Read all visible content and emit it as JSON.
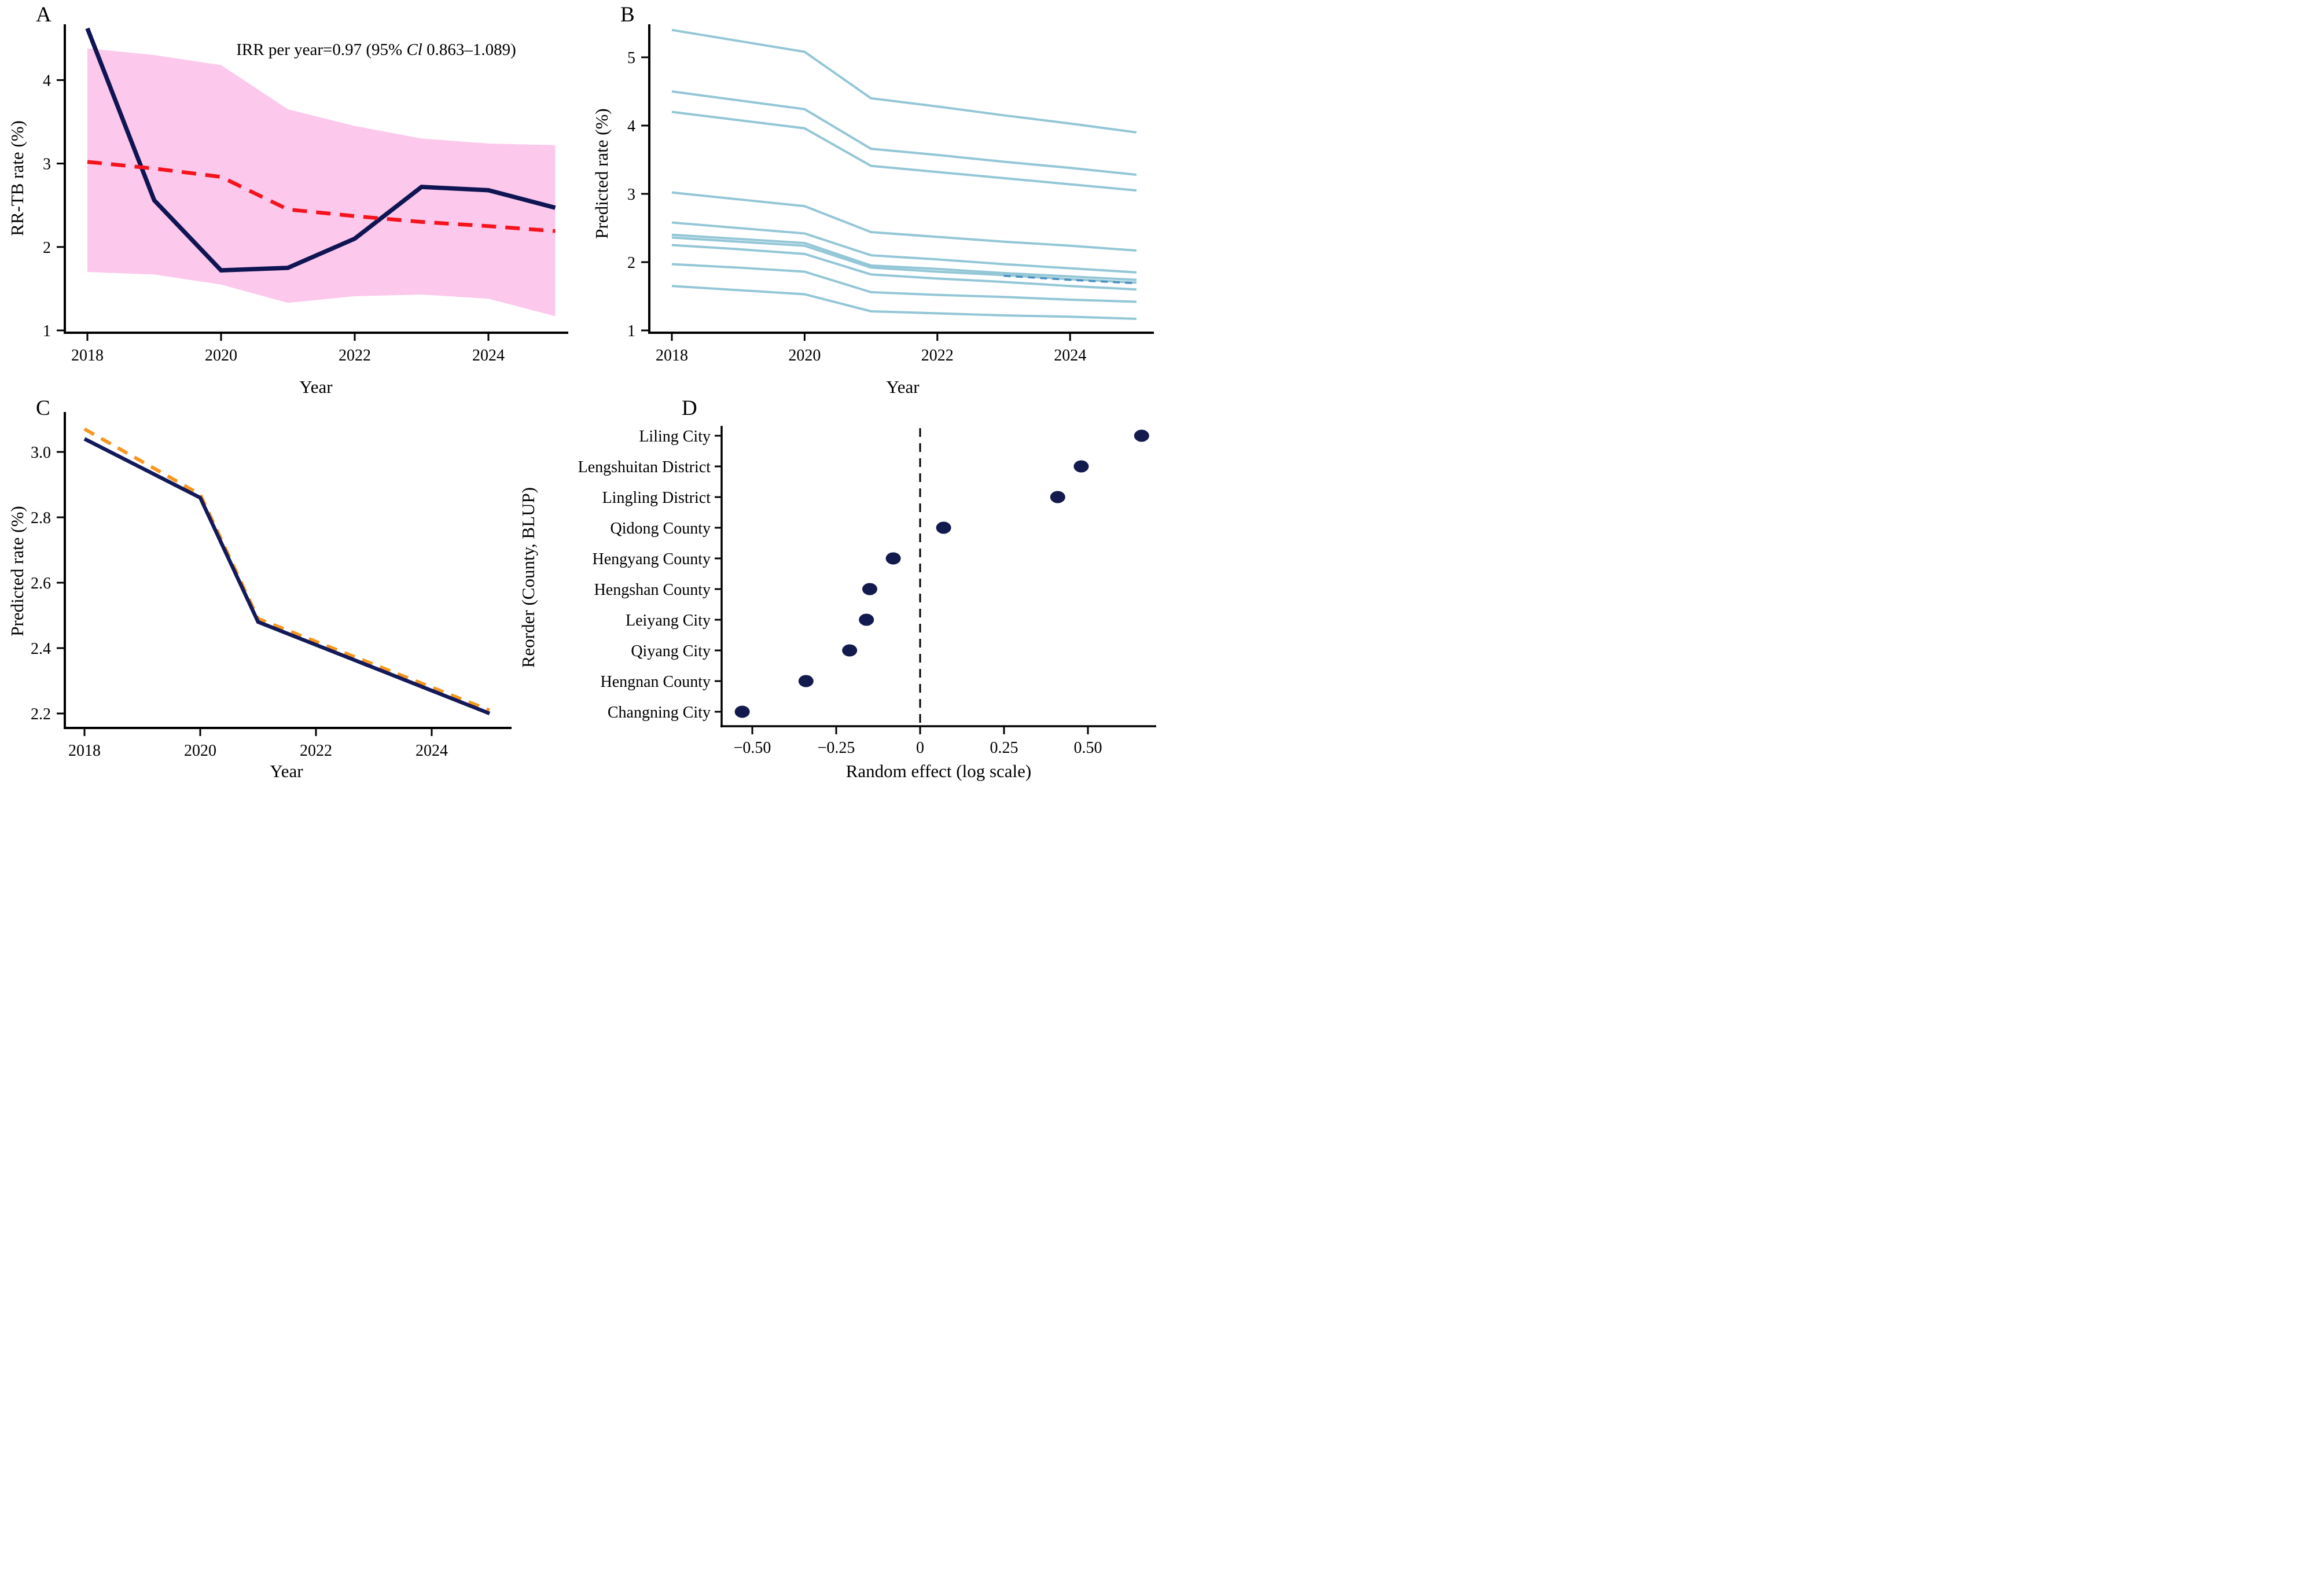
{
  "chart_data": [
    {
      "panel": "A",
      "type": "line",
      "title": "",
      "xlabel": "Year",
      "ylabel": "RR-TB rate (%)",
      "annotation": {
        "prefix": "IRR per year=0.97 (95% ",
        "italic": "Cl",
        "suffix": " 0.863–1.089)"
      },
      "x": [
        2018,
        2019,
        2020,
        2021,
        2022,
        2023,
        2024,
        2025
      ],
      "xticks": [
        2018,
        2020,
        2022,
        2024
      ],
      "xtick_labels": [
        "2018",
        "2020",
        "2022",
        "2024"
      ],
      "yticks": [
        1,
        2,
        3,
        4
      ],
      "ytick_labels": [
        "1",
        "2",
        "3",
        "4"
      ],
      "xlim": [
        2018,
        2025
      ],
      "ylim": [
        1,
        4.8
      ],
      "grid": false,
      "legend": "none",
      "band": {
        "name": "95% confidence band",
        "color": "#fcc8ec",
        "upper": [
          4.38,
          4.3,
          4.18,
          3.65,
          3.45,
          3.3,
          3.24,
          3.22
        ],
        "lower": [
          1.7,
          1.67,
          1.55,
          1.33,
          1.41,
          1.43,
          1.38,
          1.17
        ]
      },
      "series": [
        {
          "name": "observed-rr-tb-rate",
          "color": "#0e1552",
          "style": "solid",
          "width": 7.5,
          "values": [
            4.62,
            2.56,
            1.72,
            1.75,
            2.1,
            2.72,
            2.68,
            2.47
          ]
        },
        {
          "name": "fitted-rr-tb-rate",
          "color": "#f5131d",
          "style": "dashed",
          "width": 6.5,
          "dash": [
            25,
            16
          ],
          "values": [
            3.02,
            2.94,
            2.84,
            2.45,
            2.37,
            2.3,
            2.25,
            2.19
          ]
        }
      ]
    },
    {
      "panel": "B",
      "type": "line",
      "title": "",
      "xlabel": "Year",
      "ylabel": "Predicted rate (%)",
      "x": [
        2018,
        2019,
        2020,
        2021,
        2022,
        2023,
        2024,
        2025
      ],
      "xticks": [
        2018,
        2020,
        2022,
        2024
      ],
      "xtick_labels": [
        "2018",
        "2020",
        "2022",
        "2024"
      ],
      "yticks": [
        1,
        2,
        3,
        4,
        5
      ],
      "ytick_labels": [
        "1",
        "2",
        "3",
        "4",
        "5"
      ],
      "xlim": [
        2018,
        2025
      ],
      "ylim": [
        1,
        5.6
      ],
      "grid": false,
      "legend": "none",
      "line_color": "#93c6d6",
      "line_width": 4,
      "series": [
        {
          "name": "county-prediction-1",
          "values": [
            5.4,
            5.24,
            5.08,
            4.4,
            4.28,
            4.15,
            4.03,
            3.9
          ]
        },
        {
          "name": "county-prediction-2",
          "values": [
            4.5,
            4.37,
            4.24,
            3.66,
            3.57,
            3.47,
            3.38,
            3.28
          ]
        },
        {
          "name": "county-prediction-3",
          "values": [
            4.2,
            4.08,
            3.96,
            3.41,
            3.32,
            3.23,
            3.14,
            3.05
          ]
        },
        {
          "name": "county-prediction-4",
          "values": [
            3.02,
            2.92,
            2.82,
            2.44,
            2.37,
            2.3,
            2.24,
            2.17
          ]
        },
        {
          "name": "county-prediction-5",
          "values": [
            2.58,
            2.5,
            2.42,
            2.1,
            2.04,
            1.97,
            1.91,
            1.85
          ]
        },
        {
          "name": "county-prediction-6",
          "values": [
            2.4,
            2.34,
            2.28,
            1.95,
            1.9,
            1.84,
            1.79,
            1.74
          ]
        },
        {
          "name": "county-prediction-7",
          "values": [
            2.36,
            2.3,
            2.24,
            1.92,
            1.86,
            1.81,
            1.75,
            1.7
          ]
        },
        {
          "name": "county-prediction-8",
          "values": [
            2.25,
            2.19,
            2.12,
            1.82,
            1.76,
            1.71,
            1.65,
            1.6
          ]
        },
        {
          "name": "county-prediction-9",
          "values": [
            1.97,
            1.92,
            1.86,
            1.56,
            1.52,
            1.49,
            1.45,
            1.42
          ]
        },
        {
          "name": "county-prediction-10",
          "values": [
            1.65,
            1.59,
            1.53,
            1.28,
            1.25,
            1.22,
            1.2,
            1.17
          ]
        }
      ],
      "overlay": {
        "name": "mean-dashed-segment",
        "color": "#4b8fc0",
        "width": 3.5,
        "dash": [
          12,
          9
        ],
        "x": [
          2023,
          2024,
          2025
        ],
        "values": [
          1.8,
          1.74,
          1.69
        ]
      }
    },
    {
      "panel": "C",
      "type": "line",
      "title": "",
      "xlabel": "Year",
      "ylabel": "Predicted rate (%)",
      "x": [
        2018,
        2019,
        2020,
        2021,
        2022,
        2023,
        2024,
        2025
      ],
      "xticks": [
        2018,
        2020,
        2022,
        2024
      ],
      "xtick_labels": [
        "2018",
        "2020",
        "2022",
        "2024"
      ],
      "yticks": [
        2.2,
        2.4,
        2.6,
        2.8,
        3.0
      ],
      "ytick_labels": [
        "2.2",
        "2.4",
        "2.6",
        "2.8",
        "3.0"
      ],
      "xlim": [
        2018,
        2025
      ],
      "ylim": [
        2.1,
        3.15
      ],
      "grid": false,
      "legend": "none",
      "series": [
        {
          "name": "marginal-prediction-dashed",
          "color": "#f8961f",
          "style": "dashed",
          "width": 6,
          "dash": [
            19,
            14
          ],
          "values": [
            3.07,
            2.97,
            2.87,
            2.49,
            2.42,
            2.35,
            2.28,
            2.21
          ]
        },
        {
          "name": "blup-prediction-solid",
          "color": "#131a5a",
          "style": "solid",
          "width": 6.5,
          "values": [
            3.04,
            2.95,
            2.86,
            2.48,
            2.41,
            2.34,
            2.27,
            2.2
          ]
        }
      ]
    },
    {
      "panel": "D",
      "type": "scatter",
      "title": "",
      "xlabel": "Random effect (log scale)",
      "ylabel": "Reorder (County, BLUP)",
      "categories": [
        "Liling City",
        "Lengshuitan District",
        "Lingling District",
        "Qidong County",
        "Hengyang County",
        "Hengshan County",
        "Leiyang City",
        "Qiyang City",
        "Hengnan County",
        "Changning City"
      ],
      "values": [
        0.66,
        0.48,
        0.41,
        0.07,
        -0.08,
        -0.15,
        -0.16,
        -0.21,
        -0.34,
        -0.53
      ],
      "xticks": [
        -0.5,
        -0.25,
        0,
        0.25,
        0.5
      ],
      "xtick_labels": [
        "−0.50",
        "−0.25",
        "0",
        "0.25",
        "0.50"
      ],
      "xlim": [
        -0.59,
        0.7
      ],
      "refline_x": 0,
      "grid": false,
      "legend": "none",
      "dot_color": "#121a4e"
    }
  ]
}
